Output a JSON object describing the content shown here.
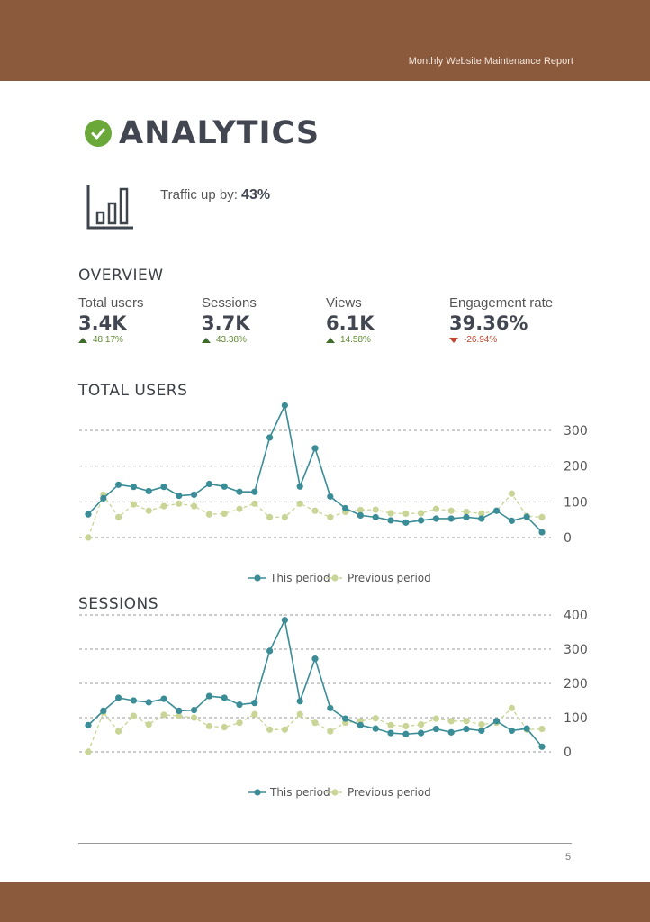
{
  "header": {
    "report_title": "Monthly Website Maintenance Report"
  },
  "heading": {
    "title": "ANALYTICS",
    "icon": "check-circle-icon"
  },
  "traffic": {
    "label": "Traffic up by:",
    "value": "43%",
    "icon": "bar-chart-icon"
  },
  "overview": {
    "title": "OVERVIEW",
    "metrics": [
      {
        "label": "Total users",
        "value": "3.4K",
        "change": "48.17%",
        "direction": "up"
      },
      {
        "label": "Sessions",
        "value": "3.7K",
        "change": "43.38%",
        "direction": "up"
      },
      {
        "label": "Views",
        "value": "6.1K",
        "change": "14.58%",
        "direction": "up"
      },
      {
        "label": "Engagement rate",
        "value": "39.36%",
        "change": "-26.94%",
        "direction": "down"
      }
    ]
  },
  "colors": {
    "this_period": "#3a8c96",
    "previous_period": "#c8d596",
    "brand": "#8b5a3c",
    "up": "#5f8a34",
    "down": "#c0452f"
  },
  "chart_data": [
    {
      "type": "line",
      "title": "TOTAL USERS",
      "ylim": [
        0,
        300
      ],
      "yticks": [
        0,
        100,
        200,
        300
      ],
      "grid": true,
      "legend_placement": "bottom-center",
      "series": [
        {
          "name": "This period",
          "values": [
            65,
            110,
            148,
            142,
            130,
            142,
            117,
            120,
            150,
            143,
            128,
            128,
            280,
            370,
            143,
            250,
            115,
            82,
            62,
            57,
            48,
            42,
            48,
            53,
            53,
            57,
            53,
            75,
            47,
            58,
            15
          ]
        },
        {
          "name": "Previous period",
          "values": [
            0,
            120,
            57,
            93,
            75,
            88,
            95,
            88,
            65,
            67,
            80,
            95,
            57,
            57,
            95,
            75,
            57,
            72,
            77,
            78,
            68,
            67,
            68,
            80,
            75,
            72,
            67,
            75,
            123,
            60,
            57
          ]
        }
      ]
    },
    {
      "type": "line",
      "title": "SESSIONS",
      "ylim": [
        0,
        400
      ],
      "yticks": [
        0,
        100,
        200,
        300,
        400
      ],
      "grid": true,
      "legend_placement": "bottom-center",
      "series": [
        {
          "name": "This period",
          "values": [
            78,
            120,
            158,
            150,
            145,
            155,
            120,
            122,
            163,
            158,
            138,
            143,
            295,
            385,
            148,
            272,
            128,
            97,
            78,
            68,
            55,
            52,
            55,
            67,
            57,
            67,
            62,
            90,
            62,
            68,
            15
          ]
        },
        {
          "name": "Previous period",
          "values": [
            0,
            115,
            60,
            105,
            80,
            108,
            105,
            100,
            75,
            72,
            85,
            110,
            65,
            65,
            110,
            85,
            60,
            85,
            90,
            98,
            78,
            75,
            80,
            97,
            90,
            90,
            80,
            85,
            128,
            65,
            67
          ]
        }
      ]
    }
  ],
  "page_number": "5"
}
